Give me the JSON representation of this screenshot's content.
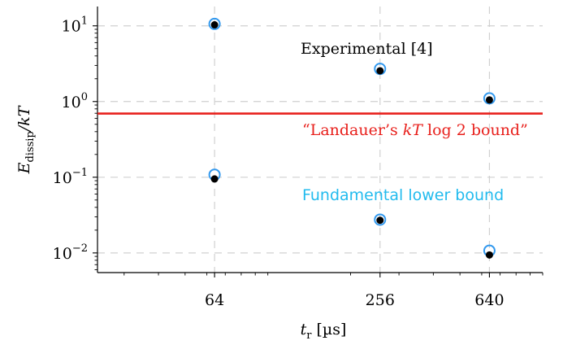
{
  "chart_data": {
    "type": "scatter",
    "x_scale": "log",
    "y_scale": "log",
    "xlim": [
      24,
      1000
    ],
    "ylim": [
      0.0055,
      18
    ],
    "x_ticks": [
      64,
      256,
      640
    ],
    "x_tick_labels": [
      "64",
      "256",
      "640"
    ],
    "y_ticks": [
      10,
      1,
      0.1,
      0.01
    ],
    "y_tick_base": "10",
    "y_tick_exponents": [
      "1",
      "0",
      "−1",
      "−2"
    ],
    "xlabel": {
      "main": "t",
      "sub": "r",
      "unit": " [µs]"
    },
    "ylabel": {
      "main": "E",
      "sub": "dissip",
      "rest": "/kT"
    },
    "grid": true,
    "series": [
      {
        "name": "Experimental [4]",
        "marker": "filled-circle",
        "color": "#000000",
        "points": [
          {
            "x": 64,
            "y": 10.3
          },
          {
            "x": 256,
            "y": 2.55
          },
          {
            "x": 640,
            "y": 1.05
          }
        ]
      },
      {
        "name": "Fundamental lower bound",
        "marker": "open-circle",
        "color": "#3399ee",
        "points": [
          {
            "x": 64,
            "y": 10.6
          },
          {
            "x": 256,
            "y": 2.7
          },
          {
            "x": 640,
            "y": 1.1
          },
          {
            "x": 64,
            "y": 0.108
          },
          {
            "x": 256,
            "y": 0.0275
          },
          {
            "x": 640,
            "y": 0.0107
          }
        ]
      },
      {
        "name": "lower-points-black",
        "marker": "filled-circle",
        "color": "#000000",
        "points": [
          {
            "x": 64,
            "y": 0.095
          },
          {
            "x": 256,
            "y": 0.027
          },
          {
            "x": 640,
            "y": 0.0094
          }
        ]
      }
    ],
    "hline": {
      "y": 0.693,
      "color": "#e8201c"
    },
    "annotations": {
      "experimental": {
        "text": "Experimental [4]",
        "color": "#000000"
      },
      "landauer": {
        "pre": "“Landauer’s ",
        "kt": "kT",
        "mid": " log 2 bound”",
        "color": "#e8201c"
      },
      "fundamental": {
        "text": "Fundamental lower bound",
        "color": "#22bbee"
      }
    }
  }
}
